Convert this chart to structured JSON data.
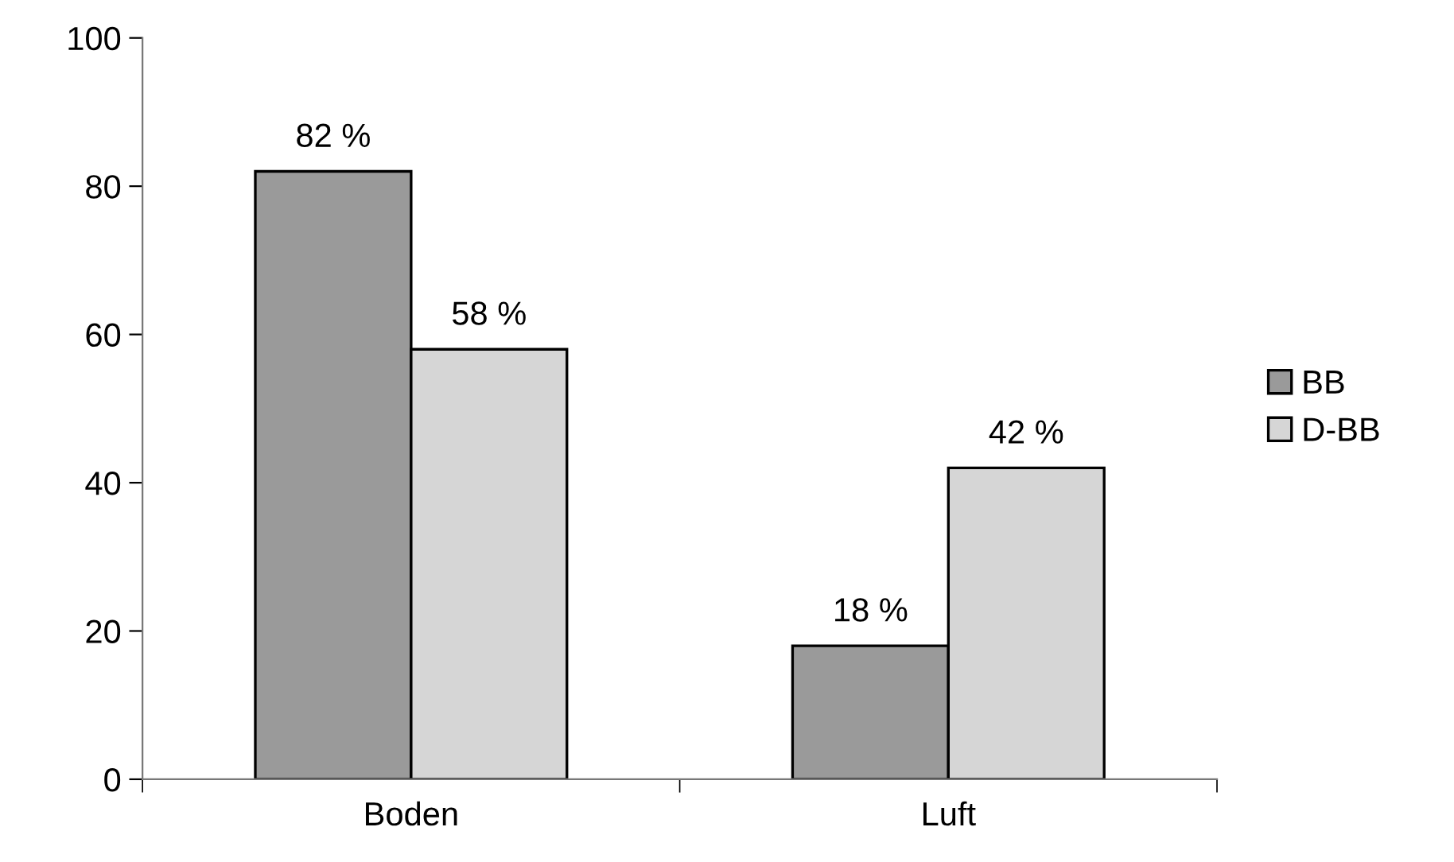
{
  "chart_data": {
    "type": "bar",
    "categories": [
      "Boden",
      "Luft"
    ],
    "series": [
      {
        "name": "BB",
        "color": "#9a9a9a",
        "values": [
          82,
          18
        ],
        "value_labels": [
          "82 %",
          "18 %"
        ]
      },
      {
        "name": "D-BB",
        "color": "#d6d6d6",
        "values": [
          58,
          42
        ],
        "value_labels": [
          "58 %",
          "42 %"
        ]
      }
    ],
    "ylim": [
      0,
      100
    ],
    "yticks": [
      0,
      20,
      40,
      60,
      80,
      100
    ],
    "grid": false,
    "legend": "right"
  }
}
